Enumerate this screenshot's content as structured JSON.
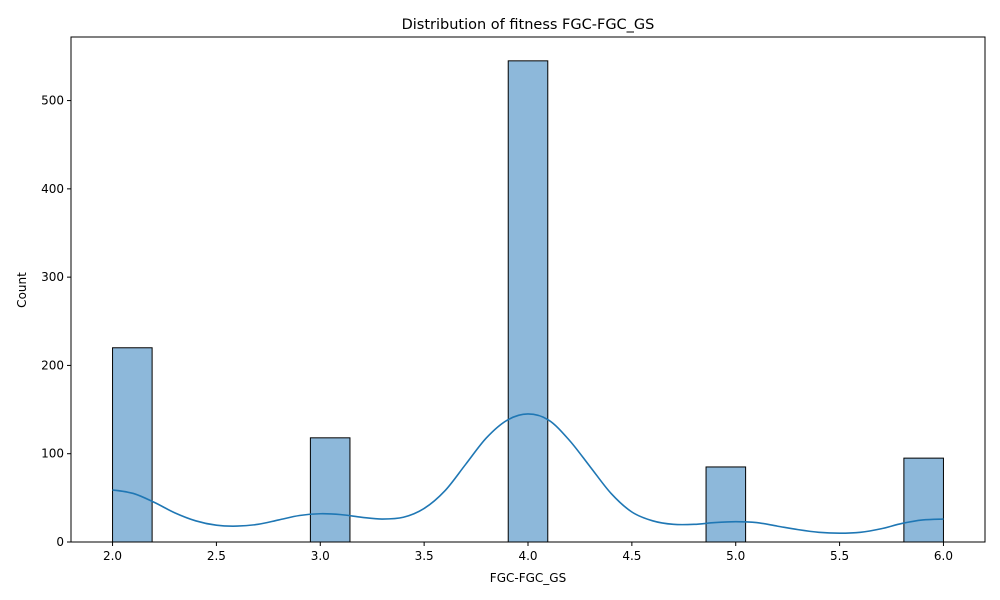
{
  "chart_data": {
    "type": "bar",
    "title": "Distribution of fitness FGC-FGC_GS",
    "xlabel": "FGC-FGC_GS",
    "ylabel": "Count",
    "xlim": [
      1.8,
      6.2
    ],
    "ylim": [
      0,
      572
    ],
    "x_ticks": [
      "2.0",
      "2.5",
      "3.0",
      "3.5",
      "4.0",
      "4.5",
      "5.0",
      "5.5",
      "6.0"
    ],
    "y_ticks": [
      "0",
      "100",
      "200",
      "300",
      "400",
      "500"
    ],
    "bins": [
      {
        "x0": 2.0,
        "x1": 2.1905,
        "count": 220
      },
      {
        "x0": 2.9524,
        "x1": 3.1429,
        "count": 118
      },
      {
        "x0": 3.9048,
        "x1": 4.0952,
        "count": 545
      },
      {
        "x0": 4.8571,
        "x1": 5.0476,
        "count": 85
      },
      {
        "x0": 5.8095,
        "x1": 6.0,
        "count": 95
      }
    ],
    "kde": {
      "x": [
        2.0,
        2.1,
        2.2,
        2.3,
        2.4,
        2.5,
        2.6,
        2.7,
        2.8,
        2.9,
        3.0,
        3.1,
        3.2,
        3.3,
        3.4,
        3.5,
        3.6,
        3.7,
        3.8,
        3.9,
        4.0,
        4.1,
        4.2,
        4.3,
        4.4,
        4.5,
        4.6,
        4.7,
        4.8,
        4.9,
        5.0,
        5.1,
        5.2,
        5.3,
        5.4,
        5.5,
        5.6,
        5.7,
        5.8,
        5.9,
        6.0
      ],
      "y": [
        59,
        55,
        45,
        33,
        24,
        19,
        18,
        20,
        25,
        30,
        32,
        31,
        28,
        26,
        28,
        38,
        58,
        88,
        118,
        138,
        145,
        138,
        115,
        85,
        55,
        34,
        24,
        20,
        20,
        22,
        23,
        22,
        18,
        14,
        11,
        10,
        11,
        15,
        21,
        25,
        26
      ]
    },
    "colors": {
      "bar_fill": "#8db8da",
      "bar_edge": "#000000",
      "kde_line": "#1f77b4"
    },
    "grid": false,
    "legend": "none"
  }
}
